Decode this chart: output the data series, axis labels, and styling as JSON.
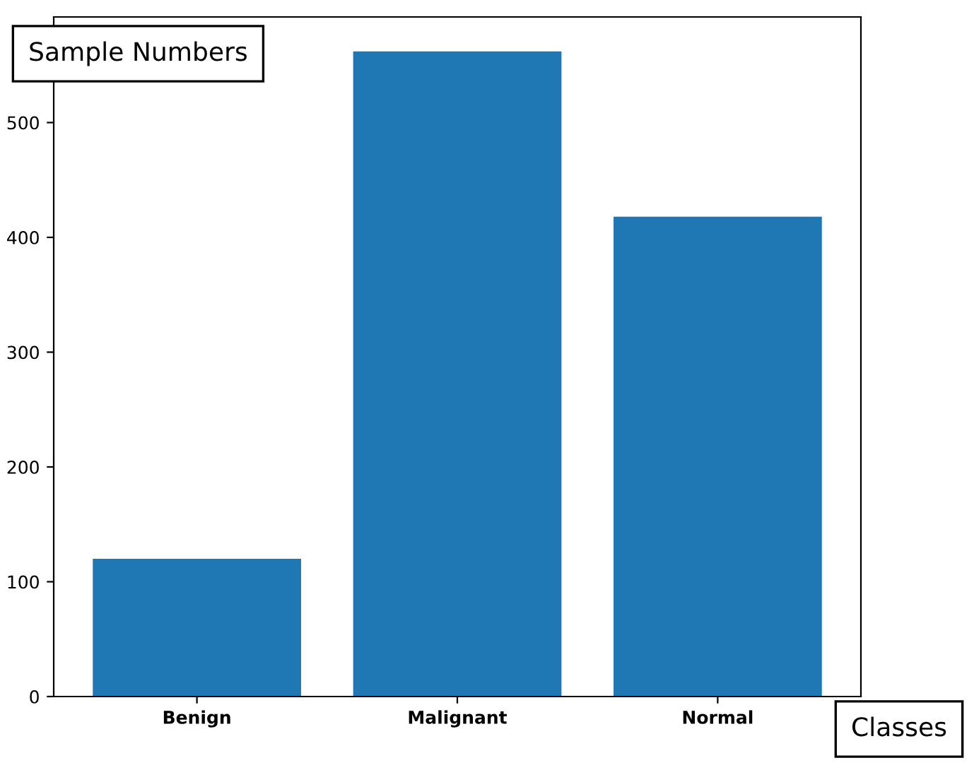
{
  "chart_data": {
    "type": "bar",
    "xlabel": "Classes",
    "ylabel": "Sample Numbers",
    "categories": [
      "Benign",
      "Malignant",
      "Normal"
    ],
    "values": [
      120,
      562,
      418
    ],
    "color": "#1f77b4",
    "ylim": [
      0,
      592
    ],
    "yticks": [
      0,
      100,
      200,
      300,
      400,
      500
    ],
    "grid": false,
    "legend": false
  }
}
